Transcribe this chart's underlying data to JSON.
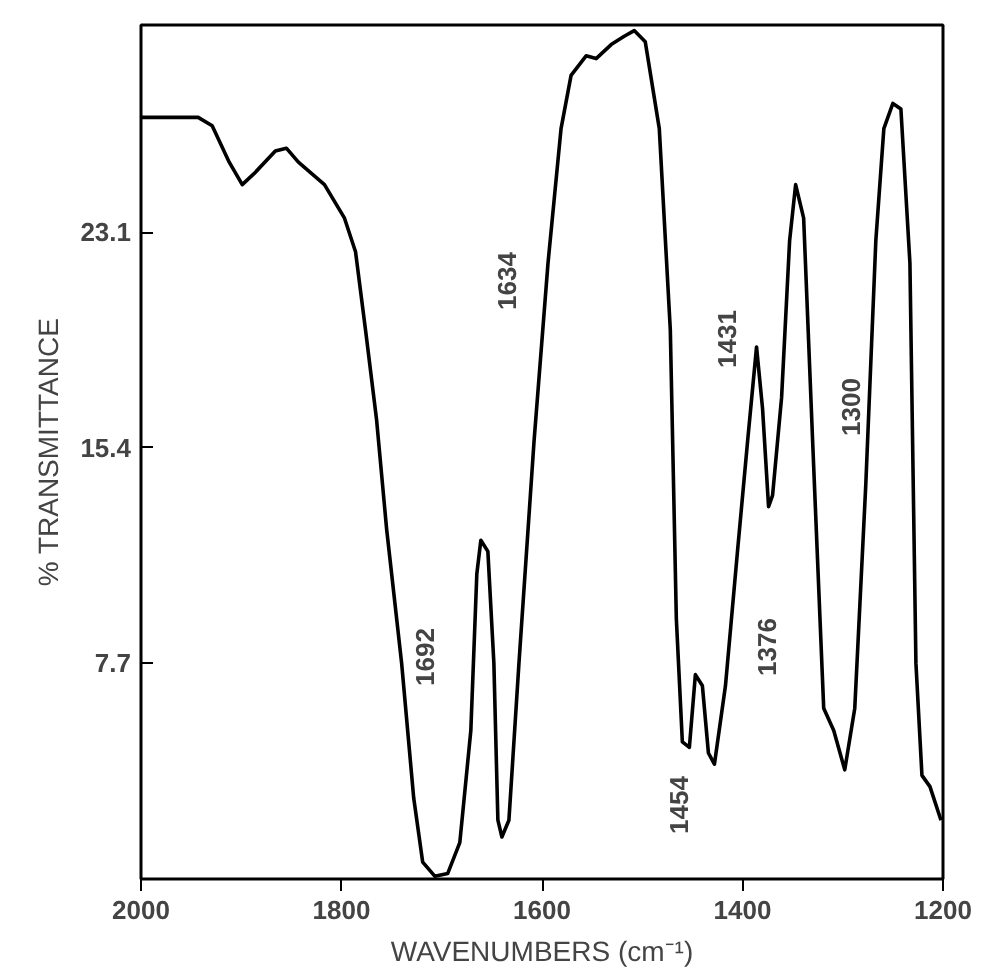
{
  "chart_data": {
    "type": "line",
    "xlabel": "WAVENUMBERS (cm⁻¹)",
    "ylabel": "% TRANSMITTANCE",
    "xlim": [
      2000,
      1200
    ],
    "ylim": [
      0,
      30.5
    ],
    "xticks": [
      2000,
      1800,
      1600,
      1400,
      1200
    ],
    "yticks": [
      7.7,
      15.4,
      23.1
    ],
    "grid": false,
    "marker": "none",
    "line_style": "solid",
    "series": [
      {
        "color": "#000000",
        "x": [
          2000,
          1943,
          1929,
          1912,
          1899,
          1887,
          1866,
          1855,
          1843,
          1817,
          1797,
          1786,
          1776,
          1765,
          1755,
          1740,
          1728,
          1719,
          1707,
          1694,
          1682,
          1671,
          1665,
          1661,
          1654,
          1648,
          1644,
          1640,
          1633,
          1623,
          1608,
          1594,
          1581,
          1571,
          1556,
          1546,
          1531,
          1518,
          1508,
          1497,
          1483,
          1472,
          1466,
          1460,
          1453,
          1447,
          1440,
          1434,
          1428,
          1417,
          1405,
          1395,
          1386,
          1380,
          1374,
          1370,
          1361,
          1353,
          1347,
          1339,
          1330,
          1319,
          1309,
          1298,
          1288,
          1277,
          1267,
          1259,
          1250,
          1242,
          1233,
          1227,
          1221,
          1213,
          1202
        ],
        "values": [
          27.2,
          27.2,
          26.9,
          25.6,
          24.8,
          25.2,
          26.0,
          26.1,
          25.6,
          24.8,
          23.6,
          22.4,
          19.6,
          16.4,
          12.5,
          7.7,
          2.9,
          0.6,
          0.1,
          0.2,
          1.3,
          5.3,
          10.9,
          12.1,
          11.7,
          7.7,
          2.1,
          1.5,
          2.1,
          7.7,
          15.6,
          22.0,
          26.8,
          28.7,
          29.4,
          29.3,
          29.8,
          30.1,
          30.3,
          29.9,
          26.8,
          19.6,
          9.3,
          4.9,
          4.7,
          7.3,
          6.9,
          4.5,
          4.1,
          6.9,
          11.7,
          15.6,
          19.0,
          16.8,
          13.3,
          13.7,
          17.2,
          22.8,
          24.8,
          23.6,
          15.6,
          6.1,
          5.3,
          3.9,
          6.1,
          14.1,
          22.8,
          26.8,
          27.7,
          27.5,
          22.0,
          7.7,
          3.7,
          3.3,
          2.1
        ]
      }
    ],
    "annotations": [
      "1692",
      "1634",
      "1454",
      "1431",
      "1376",
      "1300"
    ]
  }
}
